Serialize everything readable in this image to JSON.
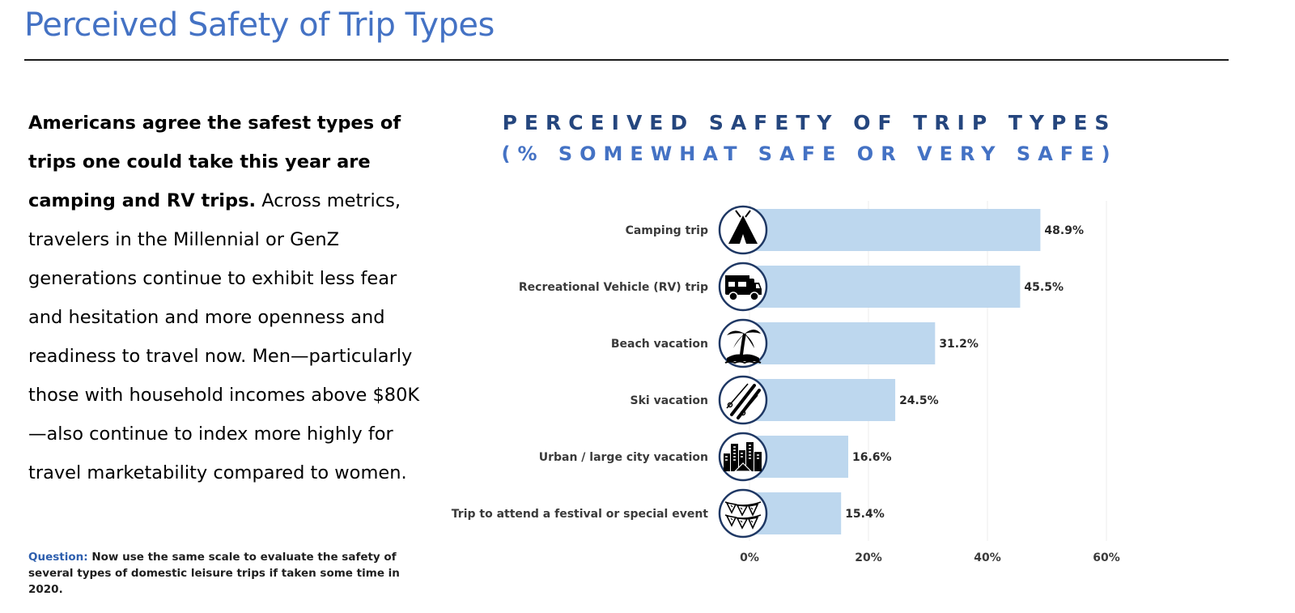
{
  "page": {
    "title": "Perceived Safety of Trip Types"
  },
  "body": {
    "lead_bold": "Americans agree the safest types of trips one could take this year are camping and RV trips.",
    "text": " Across metrics, travelers in the Millennial or GenZ generations continue to exhibit less fear and hesitation and more openness and readiness to travel now. Men—particularly those with household incomes above $80K—also continue to index more highly for travel marketability compared to women."
  },
  "question": {
    "label": "Question:",
    "text": " Now use the same scale to evaluate the safety of several types of domestic leisure trips if taken some time in 2020."
  },
  "chart_data": {
    "type": "bar",
    "orientation": "horizontal",
    "title": "PERCEIVED SAFETY OF TRIP TYPES",
    "subtitle": "(% SOMEWHAT SAFE OR VERY SAFE)",
    "categories": [
      "Camping trip",
      "Recreational Vehicle (RV) trip",
      "Beach vacation",
      "Ski vacation",
      "Urban  / large city vacation",
      "Trip to attend a festival or special event"
    ],
    "values": [
      48.9,
      45.5,
      31.2,
      24.5,
      16.6,
      15.4
    ],
    "value_labels": [
      "48.9%",
      "45.5%",
      "31.2%",
      "24.5%",
      "16.6%",
      "15.4%"
    ],
    "icons": [
      "tent-icon",
      "rv-icon",
      "palm-tree-icon",
      "ski-icon",
      "city-icon",
      "bunting-icon"
    ],
    "xlim": [
      0,
      60
    ],
    "xticks": [
      0,
      20,
      40,
      60
    ],
    "xtick_labels": [
      "0%",
      "20%",
      "40%",
      "60%"
    ],
    "grid": true,
    "bar_color": "#bdd7ee",
    "icon_border_color": "#1f3864"
  }
}
